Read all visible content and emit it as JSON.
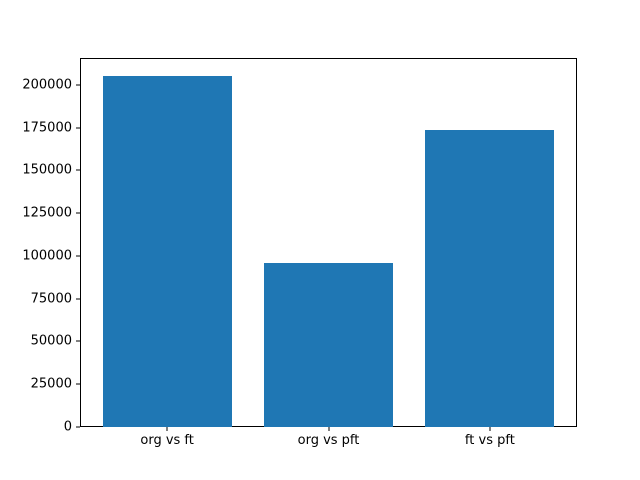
{
  "figure": {
    "background": "#ffffff"
  },
  "chart_data": {
    "type": "bar",
    "title": "",
    "xlabel": "",
    "ylabel": "",
    "categories": [
      "org vs ft",
      "org vs pft",
      "ft vs pft"
    ],
    "values": [
      205500,
      95800,
      173500
    ],
    "bar_color": "#1f77b4",
    "bar_width_fraction": 0.8,
    "xlim": [
      -0.54,
      2.54
    ],
    "ylim": [
      0,
      215775
    ],
    "yticks": [
      0,
      25000,
      50000,
      75000,
      100000,
      125000,
      150000,
      175000,
      200000
    ],
    "ytick_labels": [
      "0",
      "25000",
      "50000",
      "75000",
      "100000",
      "125000",
      "150000",
      "175000",
      "200000"
    ],
    "grid": false,
    "legend": "none"
  }
}
